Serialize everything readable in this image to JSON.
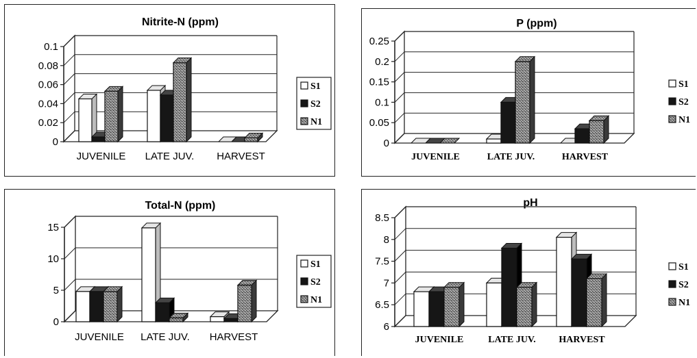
{
  "chart_data": [
    {
      "type": "bar",
      "title": "Nitrite-N (ppm)",
      "categories": [
        "JUVENILE",
        "LATE JUV.",
        "HARVEST"
      ],
      "ylim": [
        0,
        0.1
      ],
      "yticks": [
        "0",
        "0.02",
        "0.04",
        "0.06",
        "0.08",
        "0.1"
      ],
      "series": [
        {
          "name": "S1",
          "values": [
            0.045,
            0.054,
            0.0
          ]
        },
        {
          "name": "S2",
          "values": [
            0.005,
            0.049,
            0.0
          ]
        },
        {
          "name": "N1",
          "values": [
            0.053,
            0.083,
            0.004
          ]
        }
      ],
      "legend": [
        "S1",
        "S2",
        "N1"
      ],
      "grid": true,
      "legend_position": "right"
    },
    {
      "type": "bar",
      "title": "P (ppm)",
      "categories": [
        "JUVENILE",
        "LATE JUV.",
        "HARVEST"
      ],
      "ylim": [
        0,
        0.25
      ],
      "yticks": [
        "0",
        "0.05",
        "0.1",
        "0.15",
        "0.2",
        "0.25"
      ],
      "series": [
        {
          "name": "S1",
          "values": [
            0.0,
            0.01,
            0.0
          ]
        },
        {
          "name": "S2",
          "values": [
            0.0,
            0.1,
            0.035
          ]
        },
        {
          "name": "N1",
          "values": [
            0.0,
            0.2,
            0.055
          ]
        }
      ],
      "legend": [
        "S1",
        "S2",
        "N1"
      ],
      "grid": true,
      "legend_position": "right"
    },
    {
      "type": "bar",
      "title": "Total-N (ppm)",
      "categories": [
        "JUVENILE",
        "LATE JUV.",
        "HARVEST"
      ],
      "ylim": [
        0,
        15
      ],
      "yticks": [
        "0",
        "5",
        "10",
        "15"
      ],
      "series": [
        {
          "name": "S1",
          "values": [
            4.8,
            14.9,
            0.8
          ]
        },
        {
          "name": "S2",
          "values": [
            4.8,
            3.0,
            0.5
          ]
        },
        {
          "name": "N1",
          "values": [
            4.8,
            0.6,
            5.8
          ]
        }
      ],
      "legend": [
        "S1",
        "S2",
        "N1"
      ],
      "grid": true,
      "legend_position": "right"
    },
    {
      "type": "bar",
      "title": "pH",
      "categories": [
        "JUVENILE",
        "LATE JUV.",
        "HARVEST"
      ],
      "ylim": [
        6,
        8.5
      ],
      "yticks": [
        "6",
        "6.5",
        "7",
        "7.5",
        "8",
        "8.5"
      ],
      "series": [
        {
          "name": "S1",
          "values": [
            6.8,
            7.0,
            8.05
          ]
        },
        {
          "name": "S2",
          "values": [
            6.8,
            7.8,
            7.55
          ]
        },
        {
          "name": "N1",
          "values": [
            6.9,
            6.9,
            7.1
          ]
        }
      ],
      "legend": [
        "S1",
        "S2",
        "N1"
      ],
      "grid": true,
      "legend_position": "right"
    }
  ],
  "colors": {
    "S1": "#ffffff",
    "S2": "#1a1a1a",
    "N1": "#7a7a7a",
    "line": "#222222",
    "background": "#ffffff"
  }
}
